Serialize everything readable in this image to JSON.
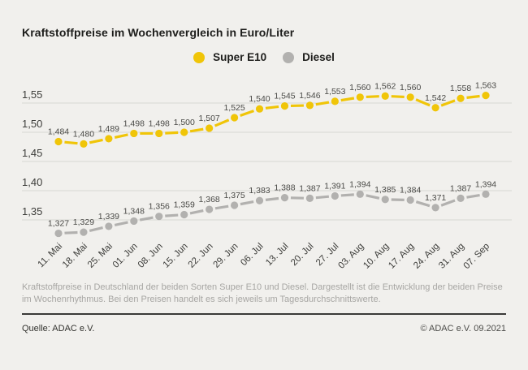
{
  "title": "Kraftstoffpreise im Wochenvergleich in Euro/Liter",
  "legend": {
    "items": [
      {
        "label": "Super E10",
        "color": "#f0c508"
      },
      {
        "label": "Diesel",
        "color": "#b2b1af"
      }
    ]
  },
  "chart_data": {
    "type": "line",
    "title": "Kraftstoffpreise im Wochenvergleich in Euro/Liter",
    "ylabel": "Euro/Liter",
    "categories": [
      "11. Mai",
      "18. Mai",
      "25. Mai",
      "01. Jun",
      "08. Jun",
      "15. Jun",
      "22. Jun",
      "29. Jun",
      "06. Jul",
      "13. Jul",
      "20. Jul",
      "27. Jul",
      "03. Aug",
      "10. Aug",
      "17. Aug",
      "24. Aug",
      "31. Aug",
      "07. Sep"
    ],
    "series": [
      {
        "name": "Super E10",
        "color": "#f0c508",
        "values": [
          1.484,
          1.48,
          1.489,
          1.498,
          1.498,
          1.5,
          1.507,
          1.525,
          1.54,
          1.545,
          1.546,
          1.553,
          1.56,
          1.562,
          1.56,
          1.542,
          1.558,
          1.563
        ]
      },
      {
        "name": "Diesel",
        "color": "#b2b1af",
        "values": [
          1.327,
          1.329,
          1.339,
          1.348,
          1.356,
          1.359,
          1.368,
          1.375,
          1.383,
          1.388,
          1.387,
          1.391,
          1.394,
          1.385,
          1.384,
          1.371,
          1.387,
          1.394
        ]
      }
    ],
    "yticks": [
      {
        "value": 1.55,
        "label": "1,55"
      },
      {
        "value": 1.5,
        "label": "1,50"
      },
      {
        "value": 1.45,
        "label": "1,45"
      },
      {
        "value": 1.4,
        "label": "1,40"
      },
      {
        "value": 1.35,
        "label": "1,35"
      }
    ],
    "ylim": [
      1.3,
      1.58
    ],
    "grid": true,
    "legend_position": "top-center",
    "value_labels": true,
    "decimal_separator": ","
  },
  "colors": {
    "background": "#f1f0ed",
    "gridline": "#d8d7d4",
    "value_label": "#4a4a47",
    "axis_label": "#3d3d3a"
  },
  "footnote": "Kraftstoffpreise in Deutschland der beiden Sorten Super E10 und Diesel. Dargestellt ist die Entwicklung der beiden Preise im Wochenrhythmus. Bei den Preisen handelt es sich jeweils um Tagesdurchschnittswerte.",
  "footer": {
    "source": "Quelle: ADAC e.V.",
    "copyright": "© ADAC e.V. 09.2021"
  }
}
